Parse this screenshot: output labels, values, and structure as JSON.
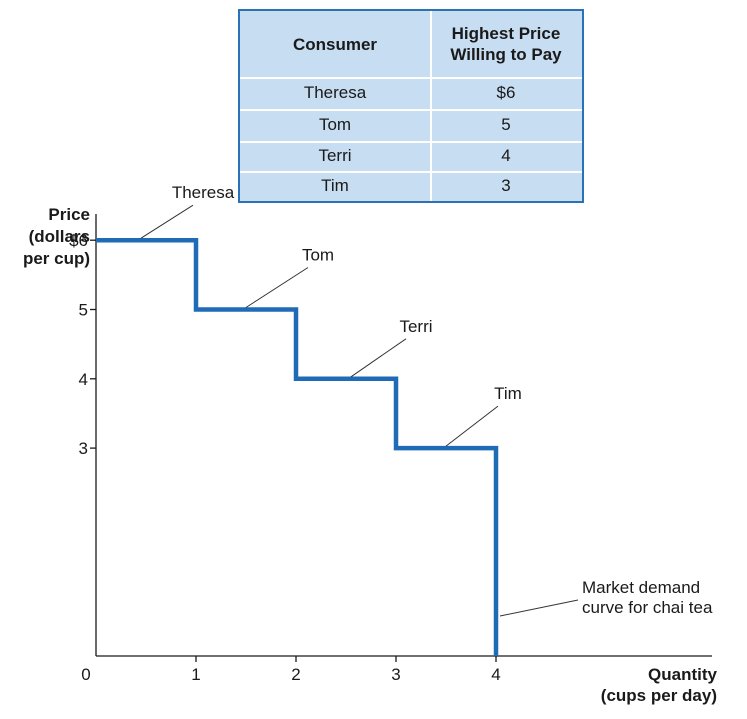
{
  "table": {
    "headers": [
      "Consumer",
      "Highest Price\nWilling to Pay"
    ],
    "header_consumer": "Consumer",
    "header_price_line1": "Highest Price",
    "header_price_line2": "Willing to Pay",
    "rows": [
      {
        "consumer": "Theresa",
        "price": "$6"
      },
      {
        "consumer": "Tom",
        "price": "5"
      },
      {
        "consumer": "Terri",
        "price": "4"
      },
      {
        "consumer": "Tim",
        "price": "3"
      }
    ]
  },
  "colors": {
    "curve": "#1f6bb5",
    "table_fill": "#c7ddf2",
    "table_border": "#2a72b5"
  },
  "chart_data": {
    "type": "line",
    "ylabel_lines": [
      "Price",
      "(dollars",
      "per cup)"
    ],
    "xlabel_lines": [
      "Quantity",
      "(cups per day)"
    ],
    "xlim": [
      0,
      6.2
    ],
    "ylim": [
      0,
      7
    ],
    "x_ticks": [
      "0",
      "1",
      "2",
      "3",
      "4"
    ],
    "y_ticks": [
      {
        "value": 6,
        "label": "$6"
      },
      {
        "value": 5,
        "label": "5"
      },
      {
        "value": 4,
        "label": "4"
      },
      {
        "value": 3,
        "label": "3"
      }
    ],
    "series": [
      {
        "points": [
          [
            0,
            6
          ],
          [
            1,
            6
          ],
          [
            1,
            5
          ],
          [
            2,
            5
          ],
          [
            2,
            4
          ],
          [
            3,
            4
          ],
          [
            3,
            3
          ],
          [
            4,
            3
          ],
          [
            4,
            0
          ]
        ]
      }
    ],
    "annotations": [
      {
        "text": "Theresa",
        "x": 0.45,
        "y": 6
      },
      {
        "text": "Tom",
        "x": 1.5,
        "y": 5
      },
      {
        "text": "Terri",
        "x": 2.55,
        "y": 4
      },
      {
        "text": "Tim",
        "x": 3.5,
        "y": 3
      }
    ],
    "curve_label_lines": [
      "Market demand",
      "curve for chai tea"
    ],
    "grid": false
  }
}
